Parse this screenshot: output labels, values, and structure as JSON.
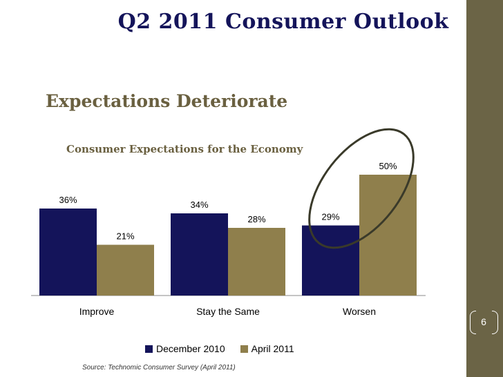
{
  "slide": {
    "title": "Q2 2011 Consumer Outlook",
    "subtitle": "Expectations Deteriorate",
    "page_number": "6",
    "source": "Source: Technomic Consumer Survey (April 2011)"
  },
  "colors": {
    "dec2010": "#14145a",
    "apr2011": "#8f7f4c",
    "side_band": "#6b6446",
    "highlight_ellipse": "#3a3a2a"
  },
  "chart_data": {
    "type": "bar",
    "title": "Consumer Expectations for the Economy",
    "categories": [
      "Improve",
      "Stay the Same",
      "Worsen"
    ],
    "series": [
      {
        "name": "December 2010",
        "values": [
          36,
          34,
          29
        ],
        "labels": [
          "36%",
          "34%",
          "29%"
        ]
      },
      {
        "name": "April 2011",
        "values": [
          21,
          28,
          50
        ],
        "labels": [
          "21%",
          "28%",
          "50%"
        ]
      }
    ],
    "ylim": [
      0,
      60
    ],
    "grid": false,
    "legend": "bottom",
    "annotation": "ellipse highlighting Worsen"
  }
}
